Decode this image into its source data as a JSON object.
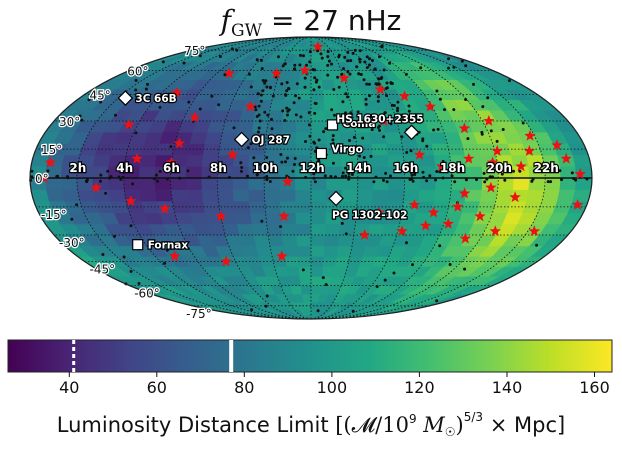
{
  "chart_data": {
    "type": "heatmap",
    "projection": "mollweide",
    "title": "f_GW = 27 nHz",
    "title_parts": {
      "var": "f",
      "sub": "GW",
      "rest": " = 27 nHz"
    },
    "ra_labels": [
      "22h",
      "20h",
      "18h",
      "16h",
      "14h",
      "12h",
      "10h",
      "8h",
      "6h",
      "4h",
      "2h"
    ],
    "ra_hours": [
      22,
      20,
      18,
      16,
      14,
      12,
      10,
      8,
      6,
      4,
      2
    ],
    "dec_labels": [
      "75°",
      "60°",
      "45°",
      "30°",
      "15°",
      "0°",
      "-15°",
      "-30°",
      "-45°",
      "-60°",
      "-75°"
    ],
    "dec_values": [
      75,
      60,
      45,
      30,
      15,
      0,
      -15,
      -30,
      -45,
      -60,
      -75
    ],
    "colorbar": {
      "label": "Luminosity Distance Limit [(𝓜/10⁹ M☉)^5/3 × Mpc]",
      "label_parts": {
        "text": "Luminosity Distance Limit ",
        "math": "[(𝓜/10",
        "exp9": "9",
        "m": " M",
        "sun": "☉",
        "close": ")",
        "exp53": "5/3",
        "tail": " × Mpc]"
      },
      "range": [
        26,
        164
      ],
      "ticks": [
        40,
        60,
        80,
        100,
        120,
        140,
        160
      ],
      "tick_labels": [
        "40",
        "60",
        "80",
        "100",
        "120",
        "140",
        "160"
      ],
      "markers": [
        {
          "value": 41,
          "style": "dashed-white"
        },
        {
          "value": 77,
          "style": "solid-white"
        }
      ],
      "colormap": "viridis"
    },
    "sky_map": {
      "description_values": "distance limit per sky pixel; low (~30) in the region RA 2h–9h north of dec -50, high (~160) near RA 21h–22h around dec -10 to 0",
      "min": 30,
      "max": 162
    },
    "labeled_sources": [
      {
        "name": "Coma",
        "ra": 12.99,
        "dec": 27.9,
        "marker": "square"
      },
      {
        "name": "Virgo",
        "ra": 12.45,
        "dec": 12.7,
        "marker": "square"
      },
      {
        "name": "Fornax",
        "ra": 3.6,
        "dec": -35.4,
        "marker": "square"
      },
      {
        "name": "HS 1630+2355",
        "ra": 16.54,
        "dec": 23.9,
        "marker": "diamond"
      },
      {
        "name": "OJ 287",
        "ra": 8.92,
        "dec": 20.1,
        "marker": "diamond"
      },
      {
        "name": "3C 66B",
        "ra": 2.38,
        "dec": 42.9,
        "marker": "diamond"
      },
      {
        "name": "PG 1302-102",
        "ra": 13.08,
        "dec": -10.6,
        "marker": "diamond"
      }
    ],
    "red_star_candidates": [
      [
        23.5,
        2
      ],
      [
        23,
        10
      ],
      [
        22.8,
        17
      ],
      [
        23.6,
        -14
      ],
      [
        22.3,
        -28
      ],
      [
        21.8,
        22
      ],
      [
        21.5,
        14
      ],
      [
        21.0,
        6
      ],
      [
        20.8,
        -10
      ],
      [
        20.5,
        -28
      ],
      [
        20.3,
        30
      ],
      [
        20.1,
        14
      ],
      [
        19.8,
        8
      ],
      [
        19.7,
        -5
      ],
      [
        19.5,
        -20
      ],
      [
        19.3,
        -32
      ],
      [
        19.0,
        26
      ],
      [
        18.8,
        10
      ],
      [
        18.6,
        -8
      ],
      [
        18.4,
        -15
      ],
      [
        18.2,
        -24
      ],
      [
        17.9,
        38
      ],
      [
        17.6,
        6
      ],
      [
        17.4,
        -18
      ],
      [
        17.2,
        -25
      ],
      [
        16.9,
        44
      ],
      [
        16.7,
        12
      ],
      [
        16.5,
        -14
      ],
      [
        16.2,
        -28
      ],
      [
        15.8,
        48
      ],
      [
        15.4,
        30
      ],
      [
        15.0,
        -18
      ],
      [
        14.5,
        -30
      ],
      [
        14.0,
        55
      ],
      [
        12.8,
        78
      ],
      [
        11.6,
        60
      ],
      [
        11.0,
        -2
      ],
      [
        10.8,
        -20
      ],
      [
        10.5,
        -42
      ],
      [
        9.8,
        58
      ],
      [
        9.0,
        38
      ],
      [
        8.6,
        12
      ],
      [
        8.0,
        -20
      ],
      [
        7.5,
        -45
      ],
      [
        6.8,
        58
      ],
      [
        6.5,
        32
      ],
      [
        6.2,
        18
      ],
      [
        6.0,
        8
      ],
      [
        5.6,
        -16
      ],
      [
        5.0,
        -42
      ],
      [
        4.8,
        46
      ],
      [
        4.5,
        10
      ],
      [
        4.2,
        -12
      ],
      [
        3.6,
        28
      ],
      [
        2.8,
        -5
      ],
      [
        0.8,
        8
      ],
      [
        0.6,
        0
      ]
    ]
  }
}
